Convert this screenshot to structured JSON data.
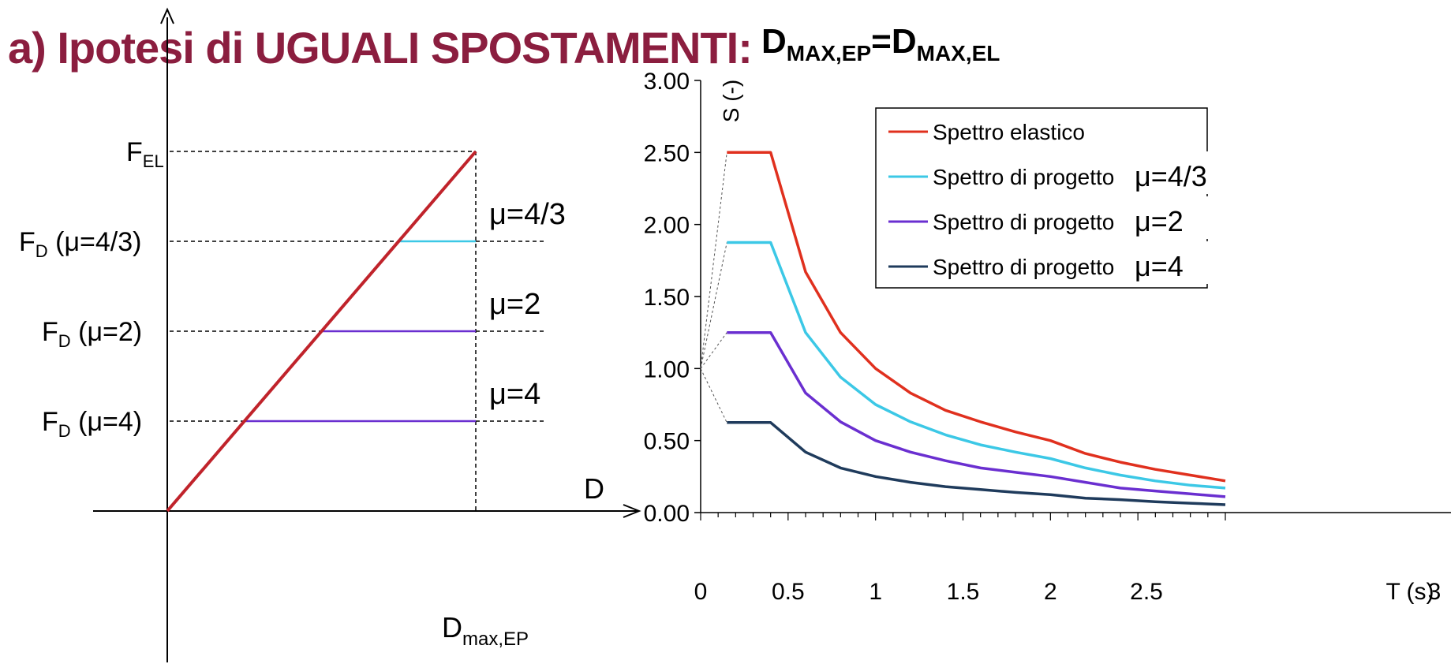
{
  "title": {
    "main": "a) Ipotesi di UGUALI SPOSTAMENTI:",
    "formula_left": "D",
    "formula_left_sub": "MAX,EP",
    "formula_eq": "=",
    "formula_right": "D",
    "formula_right_sub": "MAX,EL"
  },
  "chart_data": [
    {
      "type": "line",
      "description_labels": {
        "x_axis_label": "D",
        "x_tick_main": "D",
        "x_tick_sub": "max,EP",
        "y_labels": [
          {
            "main": "F",
            "sub": "EL",
            "suffix": ""
          },
          {
            "main": "F",
            "sub": "D",
            "suffix": " (μ=4/3)"
          },
          {
            "main": "F",
            "sub": "D",
            "suffix": " (μ=2)"
          },
          {
            "main": "F",
            "sub": "D",
            "suffix": " (μ=4)"
          }
        ]
      },
      "elastic": {
        "x": [
          0,
          1
        ],
        "y": [
          0,
          1
        ],
        "color": "#c0232b"
      },
      "plateaus": [
        {
          "label": "μ=4/3",
          "force_ratio": 0.75,
          "color": "#3cc8e6"
        },
        {
          "label": "μ=2",
          "force_ratio": 0.5,
          "color": "#6a2fd0"
        },
        {
          "label": "μ=4",
          "force_ratio": 0.25,
          "color": "#6a2fd0"
        }
      ]
    },
    {
      "type": "line",
      "xlabel": "T (s)",
      "ylabel": "S (-)",
      "xlim": [
        0,
        3
      ],
      "ylim": [
        0,
        3
      ],
      "x_ticks": [
        "0",
        "0.5",
        "1",
        "1.5",
        "2",
        "2.5",
        "3"
      ],
      "y_ticks": [
        "0.00",
        "0.50",
        "1.00",
        "1.50",
        "2.00",
        "2.50",
        "3.00"
      ],
      "legend_position": "top-right",
      "series": [
        {
          "name": "Spettro elastico",
          "mu_label": "",
          "color": "#e0301e",
          "x": [
            0.15,
            0.4,
            0.6,
            0.8,
            1.0,
            1.2,
            1.4,
            1.6,
            1.8,
            2.0,
            2.2,
            2.4,
            2.6,
            2.8,
            3.0
          ],
          "y": [
            2.5,
            2.5,
            1.67,
            1.25,
            1.0,
            0.83,
            0.71,
            0.63,
            0.56,
            0.5,
            0.41,
            0.35,
            0.3,
            0.26,
            0.22
          ]
        },
        {
          "name": "Spettro di progetto",
          "mu_label": "μ=4/3",
          "color": "#3cc8e6",
          "x": [
            0.15,
            0.4,
            0.6,
            0.8,
            1.0,
            1.2,
            1.4,
            1.6,
            1.8,
            2.0,
            2.2,
            2.4,
            2.6,
            2.8,
            3.0
          ],
          "y": [
            1.875,
            1.875,
            1.25,
            0.94,
            0.75,
            0.63,
            0.54,
            0.47,
            0.42,
            0.375,
            0.31,
            0.26,
            0.22,
            0.19,
            0.17
          ]
        },
        {
          "name": "Spettro di progetto",
          "mu_label": "μ=2",
          "color": "#6a2fd0",
          "x": [
            0.15,
            0.4,
            0.6,
            0.8,
            1.0,
            1.2,
            1.4,
            1.6,
            1.8,
            2.0,
            2.2,
            2.4,
            2.6,
            2.8,
            3.0
          ],
          "y": [
            1.25,
            1.25,
            0.83,
            0.63,
            0.5,
            0.42,
            0.36,
            0.31,
            0.28,
            0.25,
            0.21,
            0.17,
            0.15,
            0.13,
            0.11
          ]
        },
        {
          "name": "Spettro di progetto",
          "mu_label": "μ=4",
          "color": "#1f3b5c",
          "x": [
            0.15,
            0.4,
            0.6,
            0.8,
            1.0,
            1.2,
            1.4,
            1.6,
            1.8,
            2.0,
            2.2,
            2.4,
            2.6,
            2.8,
            3.0
          ],
          "y": [
            0.625,
            0.625,
            0.42,
            0.31,
            0.25,
            0.21,
            0.18,
            0.16,
            0.14,
            0.125,
            0.1,
            0.09,
            0.075,
            0.065,
            0.055
          ]
        }
      ],
      "start_value": 1.0
    }
  ]
}
